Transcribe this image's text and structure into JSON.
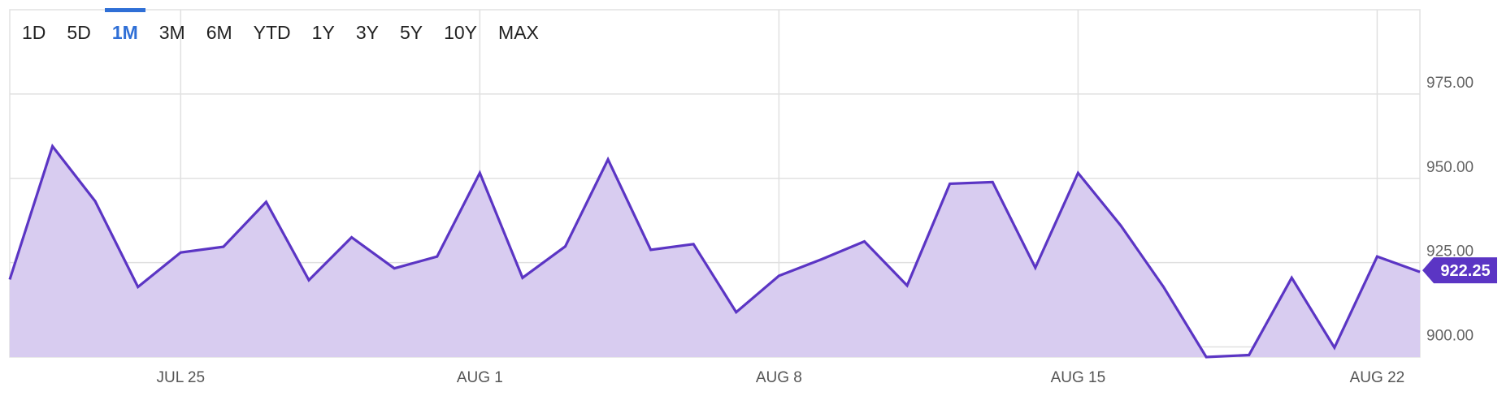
{
  "range_selector": {
    "tabs": [
      {
        "label": "1D",
        "active": false
      },
      {
        "label": "5D",
        "active": false
      },
      {
        "label": "1M",
        "active": true
      },
      {
        "label": "3M",
        "active": false
      },
      {
        "label": "6M",
        "active": false
      },
      {
        "label": "YTD",
        "active": false
      },
      {
        "label": "1Y",
        "active": false
      },
      {
        "label": "3Y",
        "active": false
      },
      {
        "label": "5Y",
        "active": false
      },
      {
        "label": "10Y",
        "active": false
      },
      {
        "label": "MAX",
        "active": false
      }
    ]
  },
  "colors": {
    "line": "#5b35c4",
    "fill": "#d8ccf0",
    "active_tab": "#2f6fd6",
    "badge": "#5b35c4",
    "grid": "#e0e0e0"
  },
  "chart_data": {
    "type": "area",
    "title": "",
    "xlabel": "",
    "ylabel": "",
    "ylim": [
      897,
      1000
    ],
    "y_ticks": [
      900,
      925,
      950,
      975
    ],
    "y_tick_labels": [
      "900.00",
      "925.00",
      "950.00",
      "975.00"
    ],
    "x_range": [
      "2024-07-21",
      "2024-08-23"
    ],
    "x_ticks": [
      "2024-07-25",
      "2024-08-01",
      "2024-08-08",
      "2024-08-15",
      "2024-08-22"
    ],
    "x_tick_labels": [
      "JUL 25",
      "AUG 1",
      "AUG 8",
      "AUG 15",
      "AUG 22"
    ],
    "grid": true,
    "series": [
      {
        "name": "",
        "x": [
          "2024-07-22",
          "2024-07-23",
          "2024-07-24",
          "2024-07-25",
          "2024-07-26",
          "2024-07-27",
          "2024-07-28",
          "2024-07-29",
          "2024-07-30",
          "2024-07-31",
          "2024-08-01",
          "2024-08-02",
          "2024-08-03",
          "2024-08-04",
          "2024-08-05",
          "2024-08-06",
          "2024-08-07",
          "2024-08-08",
          "2024-08-09",
          "2024-08-10",
          "2024-08-11",
          "2024-08-12",
          "2024-08-13",
          "2024-08-14",
          "2024-08-15",
          "2024-08-16",
          "2024-08-17",
          "2024-08-18",
          "2024-08-19",
          "2024-08-20",
          "2024-08-21",
          "2024-08-22",
          "2024-08-23"
        ],
        "values": [
          959.5,
          943.2,
          917.8,
          928.0,
          929.7,
          943.0,
          919.8,
          932.5,
          923.3,
          926.8,
          951.6,
          920.5,
          929.8,
          955.6,
          928.8,
          930.5,
          910.3,
          921.1,
          926.0,
          931.3,
          918.2,
          948.4,
          948.9,
          923.5,
          951.6,
          936.0,
          917.8,
          897.0,
          897.6,
          920.5,
          899.8,
          926.8,
          922.25
        ]
      }
    ],
    "start_value": 920.0,
    "last_value_label": "922.25"
  }
}
